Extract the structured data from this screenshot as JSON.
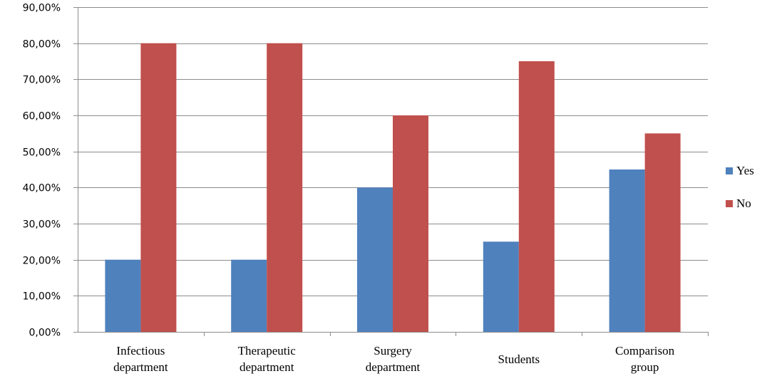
{
  "chart_data": {
    "type": "bar",
    "categories": [
      [
        "Infectious",
        "department"
      ],
      [
        "Therapeutic",
        "department"
      ],
      [
        "Surgery",
        "department"
      ],
      [
        "Students"
      ],
      [
        "Comparison",
        "group"
      ]
    ],
    "series": [
      {
        "name": "Yes",
        "color": "#4F81BD",
        "values": [
          20,
          20,
          40,
          25,
          45
        ]
      },
      {
        "name": "No",
        "color": "#C0504D",
        "values": [
          80,
          80,
          60,
          75,
          55
        ]
      }
    ],
    "ylim": [
      0,
      90
    ],
    "y_step": 10,
    "y_tick_labels": [
      "0,00%",
      "10,00%",
      "20,00%",
      "30,00%",
      "40,00%",
      "50,00%",
      "60,00%",
      "70,00%",
      "80,00%",
      "90,00%"
    ],
    "grid": true,
    "legend_position": "right",
    "title": "",
    "xlabel": "",
    "ylabel": ""
  }
}
